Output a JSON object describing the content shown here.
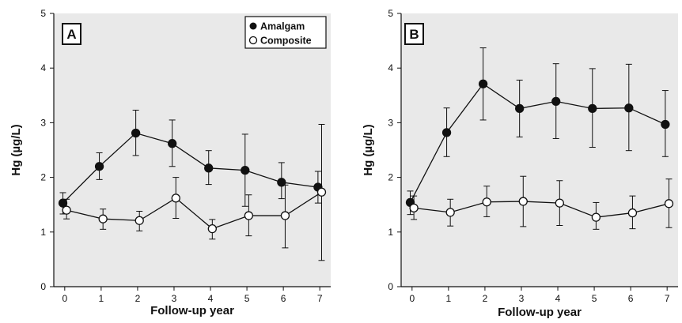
{
  "figure": {
    "xlabel": "Follow-up year",
    "ylabel": "Hg (µg/L)"
  },
  "legend": {
    "amalgam": "Amalgam",
    "composite": "Composite"
  },
  "colors": {
    "background": "#e9e9e9",
    "amalgam_marker": "#111111",
    "composite_marker": "#ffffff",
    "line": "#111111"
  },
  "chart_data": [
    {
      "panel": "A",
      "type": "line",
      "x": [
        0,
        1,
        2,
        3,
        4,
        5,
        6,
        7
      ],
      "xlabel": "Follow-up year",
      "ylabel": "Hg (µg/L)",
      "xlim": [
        -0.3,
        7.3
      ],
      "ylim": [
        0,
        5
      ],
      "xticks": [
        0,
        1,
        2,
        3,
        4,
        5,
        6,
        7
      ],
      "yticks": [
        0,
        1,
        2,
        3,
        4,
        5
      ],
      "grid": false,
      "legend_position": "top-right",
      "series": [
        {
          "name": "Amalgam",
          "marker": "filled-circle",
          "x": [
            -0.05,
            0.95,
            1.95,
            2.95,
            3.95,
            4.95,
            5.95,
            6.95
          ],
          "values": [
            1.53,
            2.2,
            2.81,
            2.62,
            2.17,
            2.13,
            1.91,
            1.82
          ],
          "err_low": [
            1.33,
            1.96,
            2.4,
            2.2,
            1.87,
            1.47,
            1.61,
            1.53
          ],
          "err_high": [
            1.72,
            2.45,
            3.23,
            3.05,
            2.49,
            2.79,
            2.27,
            2.11
          ]
        },
        {
          "name": "Composite",
          "marker": "open-circle",
          "x": [
            0.05,
            1.05,
            2.05,
            3.05,
            4.05,
            5.05,
            6.05,
            7.05
          ],
          "values": [
            1.4,
            1.24,
            1.21,
            1.62,
            1.06,
            1.3,
            1.3,
            1.73
          ],
          "err_low": [
            1.24,
            1.05,
            1.02,
            1.25,
            0.87,
            0.93,
            0.71,
            0.48
          ],
          "err_high": [
            1.6,
            1.42,
            1.38,
            2.0,
            1.23,
            1.68,
            1.86,
            2.97
          ]
        }
      ]
    },
    {
      "panel": "B",
      "type": "line",
      "x": [
        0,
        1,
        2,
        3,
        4,
        5,
        6,
        7
      ],
      "xlabel": "Follow-up year",
      "ylabel": "Hg (µg/L)",
      "xlim": [
        -0.3,
        7.3
      ],
      "ylim": [
        0,
        5
      ],
      "xticks": [
        0,
        1,
        2,
        3,
        4,
        5,
        6,
        7
      ],
      "yticks": [
        0,
        1,
        2,
        3,
        4,
        5
      ],
      "grid": false,
      "series": [
        {
          "name": "Amalgam",
          "marker": "filled-circle",
          "x": [
            -0.05,
            0.95,
            1.95,
            2.95,
            3.95,
            4.95,
            5.95,
            6.95
          ],
          "values": [
            1.54,
            2.82,
            3.71,
            3.26,
            3.39,
            3.26,
            3.27,
            2.97
          ],
          "err_low": [
            1.32,
            2.38,
            3.05,
            2.74,
            2.71,
            2.55,
            2.49,
            2.38
          ],
          "err_high": [
            1.75,
            3.27,
            4.37,
            3.78,
            4.08,
            3.99,
            4.07,
            3.59
          ]
        },
        {
          "name": "Composite",
          "marker": "open-circle",
          "x": [
            0.05,
            1.05,
            2.05,
            3.05,
            4.05,
            5.05,
            6.05,
            7.05
          ],
          "values": [
            1.44,
            1.36,
            1.55,
            1.56,
            1.53,
            1.27,
            1.35,
            1.52
          ],
          "err_low": [
            1.23,
            1.11,
            1.28,
            1.1,
            1.12,
            1.05,
            1.06,
            1.08
          ],
          "err_high": [
            1.66,
            1.6,
            1.84,
            2.02,
            1.94,
            1.54,
            1.66,
            1.97
          ]
        }
      ]
    }
  ]
}
